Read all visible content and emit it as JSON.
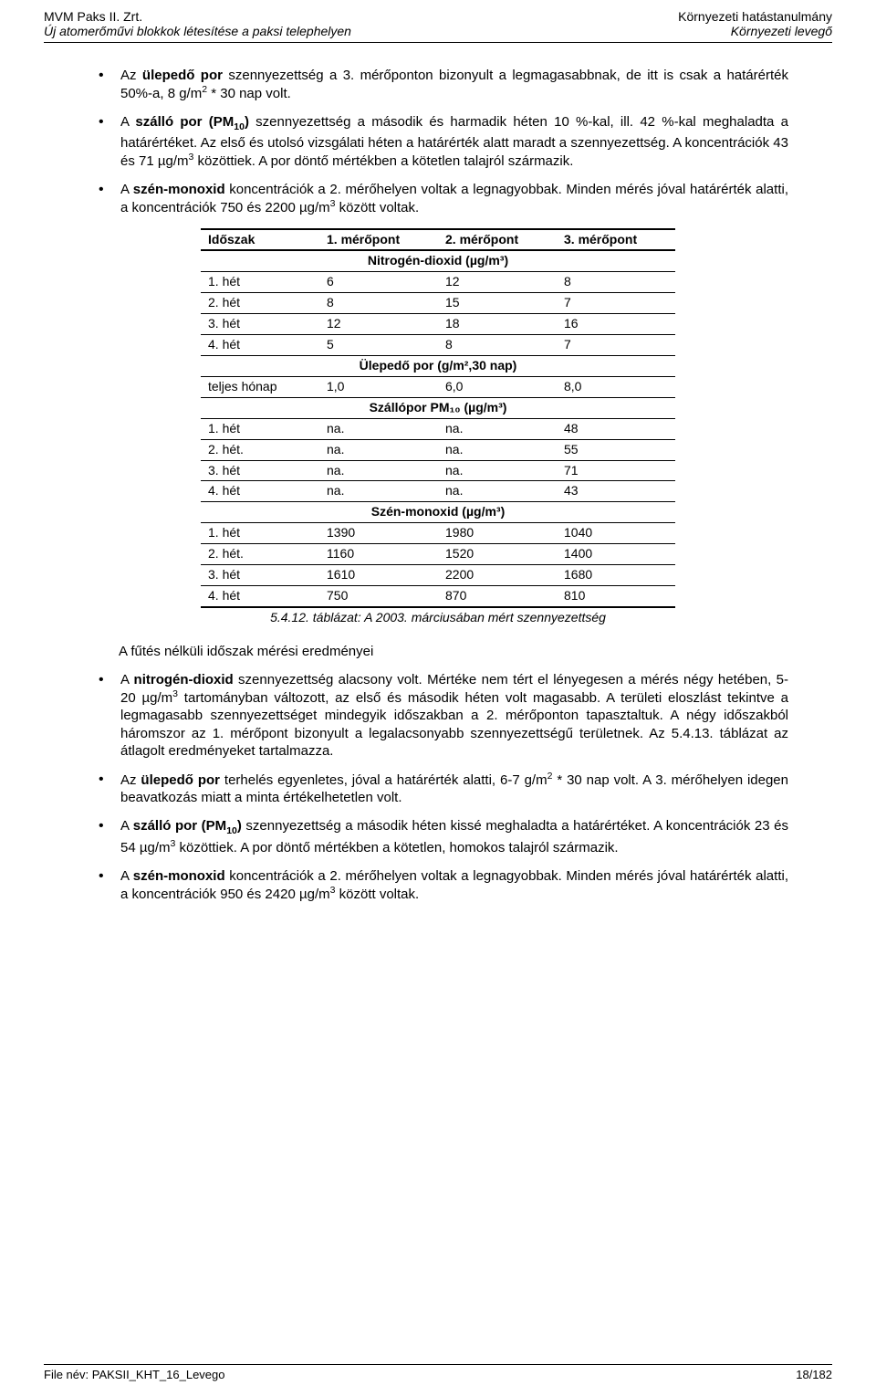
{
  "header": {
    "left1": "MVM Paks II. Zrt.",
    "left2": "Új atomerőművi blokkok létesítése a paksi telephelyen",
    "right1": "Környezeti hatástanulmány",
    "right2": "Környezeti levegő"
  },
  "bullets_top": [
    "Az <b>ülepedő por</b> szennyezettség a 3. mérőponton bizonyult a legmagasabbnak, de itt is csak a határérték 50%-a, 8 g/m<sup>2</sup> * 30 nap volt.",
    "A <b>szálló por (PM<sub>10</sub>)</b> szennyezettség a második és harmadik héten 10 %-kal, ill. 42 %-kal meghaladta a határértéket. Az első és utolsó vizsgálati héten a határérték alatt maradt a szennyezettség. A koncentrációk 43 és 71 µg/m<sup>3</sup> közöttiek. A por döntő mértékben a kötetlen talajról származik.",
    "A <b>szén-monoxid</b> koncentrációk a 2. mérőhelyen voltak a legnagyobbak. Minden mérés jóval határérték alatti, a koncentrációk 750 és 2200 µg/m<sup>3</sup> között voltak."
  ],
  "table": {
    "headers": [
      "Időszak",
      "1. mérőpont",
      "2. mérőpont",
      "3. mérőpont"
    ],
    "sections": [
      {
        "title": "Nitrogén-dioxid (µg/m³)",
        "rows": [
          [
            "1. hét",
            "6",
            "12",
            "8"
          ],
          [
            "2. hét",
            "8",
            "15",
            "7"
          ],
          [
            "3. hét",
            "12",
            "18",
            "16"
          ],
          [
            "4. hét",
            "5",
            "8",
            "7"
          ]
        ]
      },
      {
        "title": "Ülepedő por (g/m²,30 nap)",
        "rows": [
          [
            "teljes hónap",
            "1,0",
            "6,0",
            "8,0"
          ]
        ]
      },
      {
        "title": "Szállópor PM₁₀ (µg/m³)",
        "rows": [
          [
            "1. hét",
            "na.",
            "na.",
            "48"
          ],
          [
            "2. hét.",
            "na.",
            "na.",
            "55"
          ],
          [
            "3. hét",
            "na.",
            "na.",
            "71"
          ],
          [
            "4. hét",
            "na.",
            "na.",
            "43"
          ]
        ]
      },
      {
        "title": "Szén-monoxid (µg/m³)",
        "rows": [
          [
            "1. hét",
            "1390",
            "1980",
            "1040"
          ],
          [
            "2. hét.",
            "1160",
            "1520",
            "1400"
          ],
          [
            "3. hét",
            "1610",
            "2200",
            "1680"
          ],
          [
            "4. hét",
            "750",
            "870",
            "810"
          ]
        ]
      }
    ]
  },
  "caption": "5.4.12. táblázat: A 2003. márciusában mért szennyezettség",
  "subhead": "A fűtés nélküli időszak mérési eredményei",
  "bullets_bottom": [
    "A <b>nitrogén-dioxid</b> szennyezettség alacsony volt. Mértéke nem tért el lényegesen a mérés négy hetében, 5-20 µg/m<sup>3</sup> tartományban változott, az első és második héten volt magasabb. A területi eloszlást tekintve a legmagasabb szennyezettséget mindegyik időszakban a 2. mérőponton tapasztaltuk. A négy időszakból háromszor az 1. mérőpont bizonyult a legalacsonyabb szennyezettségű területnek. Az 5.4.13. táblázat az átlagolt eredményeket tartalmazza.",
    "Az <b>ülepedő por</b> terhelés egyenletes, jóval a határérték alatti, 6-7 g/m<sup>2</sup> * 30 nap volt. A 3. mérőhelyen idegen beavatkozás miatt a minta értékelhetetlen volt.",
    "A <b>szálló por (PM<sub>10</sub>)</b> szennyezettség a második héten kissé meghaladta a határértéket. A koncentrációk 23 és 54 µg/m<sup>3</sup> közöttiek. A por döntő mértékben a kötetlen, homokos talajról származik.",
    "A <b>szén-monoxid</b> koncentrációk a 2. mérőhelyen voltak a legnagyobbak. Minden mérés jóval határérték alatti, a koncentrációk 950 és 2420 µg/m<sup>3</sup> között voltak."
  ],
  "footer": {
    "left": "File név: PAKSII_KHT_16_Levego",
    "right": "18/182"
  }
}
